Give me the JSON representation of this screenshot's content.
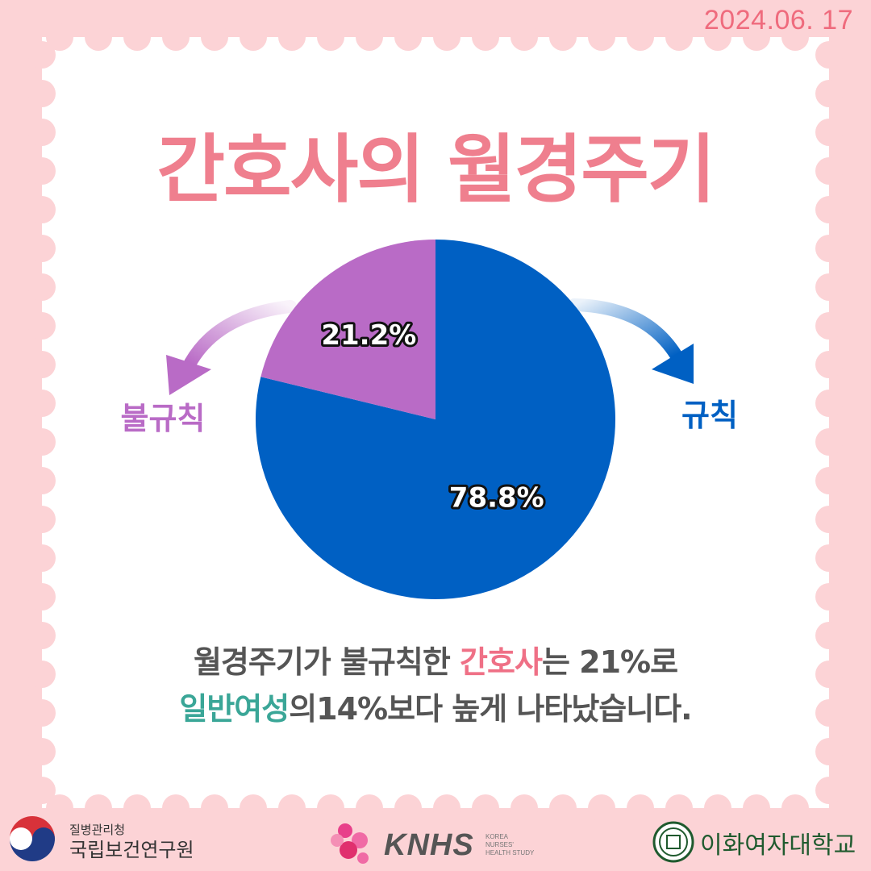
{
  "date": "2024.06. 17",
  "title": "간호사의 월경주기",
  "chart_data": {
    "type": "pie",
    "slices": [
      {
        "label": "규칙",
        "value": 78.8,
        "display": "78.8%",
        "color": "#0060c3"
      },
      {
        "label": "불규칙",
        "value": 21.2,
        "display": "21.2%",
        "color": "#b96bc6"
      }
    ]
  },
  "caption": {
    "line1_pre": "월경주기가 불규칙한 ",
    "line1_highlight": "간호사",
    "line1_post": "는 21%로",
    "line2_highlight": "일반여성",
    "line2_post": "의14%보다 높게 나타났습니다."
  },
  "footer": {
    "kdca_small": "질병관리청",
    "kdca_name": "국립보건연구원",
    "knhs_logo": "KNHS",
    "knhs_sub": [
      "KOREA",
      "NURSES'",
      "HEALTH STUDY"
    ],
    "ewha_name": "이화여자대학교"
  },
  "colors": {
    "background": "#fcd3d6",
    "title": "#ef7f8e",
    "regular": "#0060c3",
    "irregular": "#b96bc6",
    "highlight_pink": "#ef7086",
    "highlight_green": "#3aa697"
  }
}
